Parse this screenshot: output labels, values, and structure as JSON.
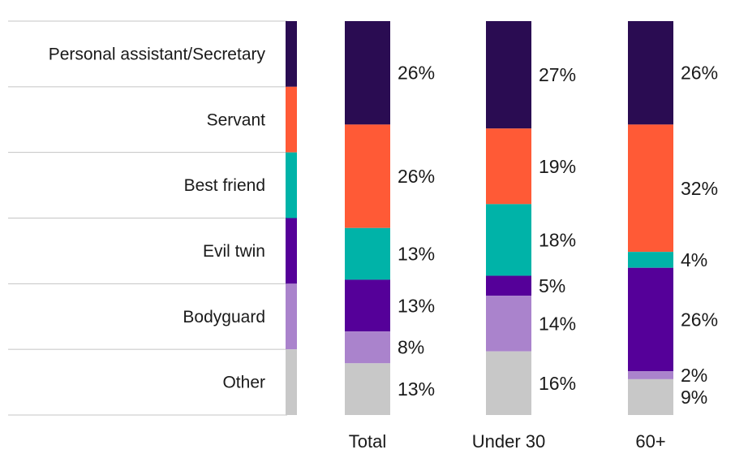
{
  "chart_data": {
    "type": "bar",
    "stacked": true,
    "orientation": "vertical",
    "categories": [
      "Total",
      "Under 30",
      "60+"
    ],
    "series": [
      {
        "name": "Personal assistant/Secretary",
        "color": "#2a0c52",
        "values": [
          26,
          27,
          26
        ]
      },
      {
        "name": "Servant",
        "color": "#ff5a36",
        "values": [
          26,
          19,
          32
        ]
      },
      {
        "name": "Best friend",
        "color": "#00b3a8",
        "values": [
          13,
          18,
          4
        ]
      },
      {
        "name": "Evil twin",
        "color": "#550099",
        "values": [
          13,
          5,
          26
        ]
      },
      {
        "name": "Bodyguard",
        "color": "#aa83cc",
        "values": [
          8,
          14,
          2
        ]
      },
      {
        "name": "Other",
        "color": "#c8c8c8",
        "values": [
          13,
          16,
          9
        ]
      }
    ],
    "value_labels": [
      [
        "26%",
        "26%",
        "13%",
        "13%",
        "8%",
        "13%"
      ],
      [
        "27%",
        "19%",
        "18%",
        "5%",
        "14%",
        "16%"
      ],
      [
        "26%",
        "32%",
        "4%",
        "26%",
        "2%",
        "9%"
      ]
    ],
    "legend": {
      "placement": "left",
      "style": "color strip with row labels and dividers"
    },
    "ylim": [
      0,
      100
    ],
    "grid": false
  }
}
